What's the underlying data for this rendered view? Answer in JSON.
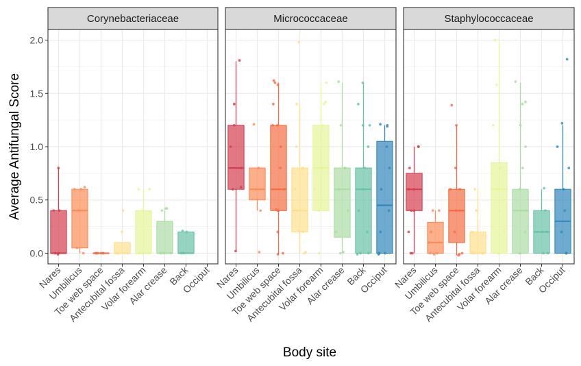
{
  "chart_data": {
    "type": "box",
    "xlabel": "Body site",
    "ylabel": "Average Antifungal Score",
    "ylim": [
      -0.1,
      2.1
    ],
    "yticks": [
      0.0,
      0.5,
      1.0,
      1.5,
      2.0
    ],
    "ytick_labels": [
      "0.0",
      "0.5",
      "1.0",
      "1.5",
      "2.0"
    ],
    "categories": [
      "Nares",
      "Umbilicus",
      "Toe web space",
      "Antecubital fossa",
      "Volar forearm",
      "Alar crease",
      "Back",
      "Occiput"
    ],
    "colors": [
      "#d53e4f",
      "#fc8d59",
      "#f46d43",
      "#fee08b",
      "#e6f598",
      "#abdda4",
      "#66c2a5",
      "#3288bd"
    ],
    "grid": true,
    "facets": [
      {
        "name": "Corynebacteriaceae",
        "boxes": [
          {
            "q1": 0.0,
            "median": 0.0,
            "q3": 0.4,
            "lower": 0.0,
            "upper": 0.8,
            "points": [
              0.8,
              0.4,
              0.4,
              0.0,
              -0.01,
              0.0
            ]
          },
          {
            "q1": 0.05,
            "median": 0.4,
            "q3": 0.6,
            "lower": 0.0,
            "upper": 0.6,
            "points": [
              0.6,
              0.62,
              0.6,
              0.4,
              0.05,
              0.0
            ]
          },
          {
            "q1": 0.0,
            "median": 0.0,
            "q3": 0.0,
            "lower": 0.0,
            "upper": 0.0,
            "points": [
              0.0,
              0.0,
              0.0,
              0.0,
              0.0,
              0.0
            ]
          },
          {
            "q1": 0.0,
            "median": 0.0,
            "q3": 0.1,
            "lower": 0.0,
            "upper": 0.1,
            "points": [
              0.4,
              0.2,
              0.0,
              0.0,
              0.0
            ]
          },
          {
            "q1": 0.0,
            "median": 0.0,
            "q3": 0.4,
            "lower": 0.0,
            "upper": 0.6,
            "points": [
              0.6,
              0.6,
              0.4,
              0.0,
              0.0,
              0.0
            ]
          },
          {
            "q1": 0.0,
            "median": 0.0,
            "q3": 0.3,
            "lower": 0.0,
            "upper": 0.4,
            "points": [
              0.42,
              0.42,
              0.4,
              0.0,
              0.0,
              0.0
            ]
          },
          {
            "q1": 0.0,
            "median": 0.0,
            "q3": 0.2,
            "lower": 0.0,
            "upper": 0.2,
            "points": [
              0.21,
              0.2,
              0.0,
              0.0
            ]
          },
          null
        ]
      },
      {
        "name": "Micrococcaceae",
        "boxes": [
          {
            "q1": 0.6,
            "median": 0.8,
            "q3": 1.2,
            "lower": 0.02,
            "upper": 1.8,
            "points": [
              1.81,
              1.4,
              1.2,
              1.0,
              0.8,
              0.6,
              0.62,
              0.02
            ]
          },
          {
            "q1": 0.5,
            "median": 0.6,
            "q3": 0.8,
            "lower": 0.4,
            "upper": 0.8,
            "points": [
              1.21,
              0.8,
              0.6,
              0.4,
              0.01
            ]
          },
          {
            "q1": 0.4,
            "median": 0.6,
            "q3": 1.2,
            "lower": -0.01,
            "upper": 1.6,
            "points": [
              1.62,
              1.6,
              1.58,
              1.4,
              1.2,
              1.2,
              1.0,
              0.8,
              0.6,
              0.41,
              0.4,
              0.4,
              0.2,
              0.0,
              -0.01
            ]
          },
          {
            "q1": 0.2,
            "median": 0.4,
            "q3": 0.8,
            "lower": 0.0,
            "upper": 1.4,
            "points": [
              1.98,
              1.4,
              1.0,
              0.8,
              0.6,
              0.4,
              0.2,
              0.0,
              0.01
            ]
          },
          {
            "q1": 0.4,
            "median": 0.8,
            "q3": 1.2,
            "lower": 0.4,
            "upper": 1.6,
            "points": [
              1.6,
              1.42,
              1.4,
              1.2,
              0.8,
              0.6,
              0.4,
              0.0
            ]
          },
          {
            "q1": 0.15,
            "median": 0.6,
            "q3": 0.8,
            "lower": 0.0,
            "upper": 1.6,
            "points": [
              1.61,
              1.2,
              0.8,
              0.8,
              0.6,
              0.4,
              0.2,
              0.0,
              0.01
            ]
          },
          {
            "q1": 0.0,
            "median": 0.6,
            "q3": 0.8,
            "lower": 0.0,
            "upper": 1.6,
            "points": [
              1.6,
              1.4,
              1.2,
              1.2,
              1.0,
              0.8,
              0.6,
              0.4,
              0.2,
              0.0,
              0.0,
              -0.01
            ]
          },
          {
            "q1": 0.0,
            "median": 0.45,
            "q3": 1.05,
            "lower": 0.0,
            "upper": 1.2,
            "points": [
              1.21,
              1.2,
              1.19,
              1.0,
              0.8,
              0.6,
              0.4,
              0.2,
              0.0,
              0.0,
              -0.01,
              0.0
            ]
          }
        ]
      },
      {
        "name": "Staphylococcaceae",
        "boxes": [
          {
            "q1": 0.4,
            "median": 0.6,
            "q3": 0.75,
            "lower": 0.0,
            "upper": 1.0,
            "points": [
              1.0,
              1.0,
              0.8,
              0.6,
              0.6,
              0.4,
              0.4,
              0.2,
              0.0,
              0.0
            ]
          },
          {
            "q1": 0.0,
            "median": 0.1,
            "q3": 0.29,
            "lower": 0.0,
            "upper": 0.4,
            "points": [
              0.4,
              0.4,
              0.2,
              0.2,
              0.1,
              0.0,
              0.0,
              -0.01
            ]
          },
          {
            "q1": 0.1,
            "median": 0.4,
            "q3": 0.6,
            "lower": -0.02,
            "upper": 1.2,
            "points": [
              1.39,
              1.2,
              0.8,
              0.6,
              0.6,
              0.4,
              0.4,
              0.2,
              0.0,
              -0.01,
              -0.02
            ]
          },
          {
            "q1": 0.0,
            "median": 0.0,
            "q3": 0.2,
            "lower": 0.0,
            "upper": 0.6,
            "points": [
              0.6,
              0.4,
              0.2,
              0.0,
              0.0,
              0.01
            ]
          },
          {
            "q1": 0.0,
            "median": 0.6,
            "q3": 0.85,
            "lower": 0.0,
            "upper": 2.0,
            "points": [
              2.0,
              1.58,
              1.2,
              0.8,
              0.6,
              0.6,
              0.4,
              0.2,
              0.0,
              0.0
            ]
          },
          {
            "q1": 0.0,
            "median": 0.4,
            "q3": 0.6,
            "lower": 0.0,
            "upper": 1.6,
            "points": [
              1.61,
              1.42,
              1.4,
              1.2,
              1.0,
              0.8,
              0.6,
              0.4,
              0.2,
              0.0,
              0.0
            ]
          },
          {
            "q1": 0.0,
            "median": 0.2,
            "q3": 0.4,
            "lower": 0.0,
            "upper": 0.6,
            "points": [
              0.61,
              0.4,
              0.2,
              0.2,
              0.0,
              0.0
            ]
          },
          {
            "q1": 0.0,
            "median": 0.3,
            "q3": 0.6,
            "lower": 0.0,
            "upper": 1.2,
            "points": [
              1.82,
              1.22,
              1.0,
              0.8,
              0.6,
              0.4,
              0.2,
              0.0,
              0.0
            ]
          }
        ]
      }
    ]
  }
}
